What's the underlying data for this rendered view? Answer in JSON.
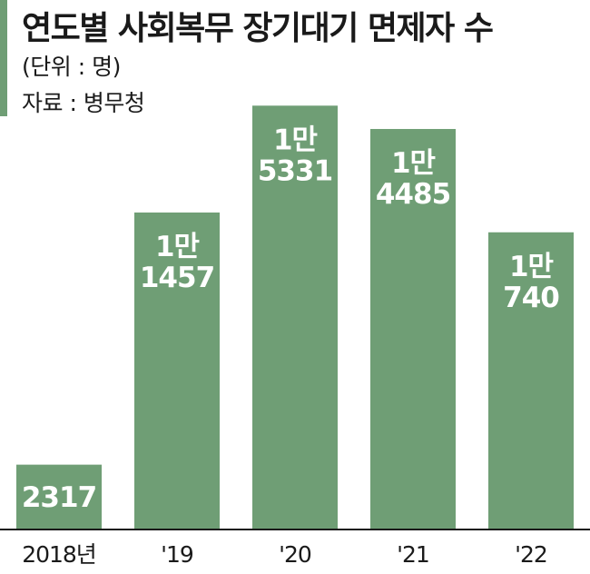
{
  "header": {
    "title": "연도별 사회복무 장기대기 면제자 수",
    "unit": "(단위 : 명)",
    "source": "자료 : 병무청"
  },
  "colors": {
    "bar": "#6f9e75",
    "accent": "#6f9e75",
    "axis": "#1a1a1a"
  },
  "chart_data": {
    "type": "bar",
    "title": "연도별 사회복무 장기대기 면제자 수",
    "categories": [
      "2018년",
      "'19",
      "'20",
      "'21",
      "'22"
    ],
    "values": [
      2317,
      11457,
      15331,
      14485,
      10740
    ],
    "data_labels": [
      [
        "2317"
      ],
      [
        "1만",
        "1457"
      ],
      [
        "1만",
        "5331"
      ],
      [
        "1만",
        "4485"
      ],
      [
        "1만",
        "740"
      ]
    ],
    "ylim": [
      0,
      16000
    ],
    "grid": false,
    "legend": "none"
  }
}
